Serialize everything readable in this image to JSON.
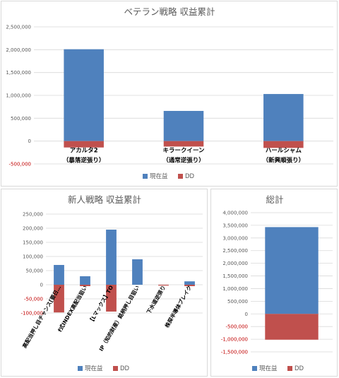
{
  "colors": {
    "profit": "#4f81bd",
    "dd": "#c0504d",
    "grid": "#d9d9d9",
    "axis_text": "#595959",
    "negative_tick": "#c00000"
  },
  "chart_data": [
    {
      "type": "bar",
      "title": "ベテラン戦略 収益累計",
      "categories": [
        [
          "アカルタ2",
          "（暴落逆張り）"
        ],
        [
          "キラークイーン",
          "（通常逆張り）"
        ],
        [
          "ハールシャム",
          "（新興順張り）"
        ]
      ],
      "series": [
        {
          "name": "現在益",
          "values": [
            2010000,
            660000,
            1030000
          ]
        },
        {
          "name": "DD",
          "values": [
            -140000,
            -120000,
            -150000
          ]
        }
      ],
      "ylim": [
        -500000,
        2500000
      ],
      "yticks": [
        "-500,000",
        "0",
        "500,000",
        "1,000,000",
        "1,500,000",
        "2,000,000",
        "2,500,000"
      ],
      "ytick_values": [
        -500000,
        0,
        500000,
        1000000,
        1500000,
        2000000,
        2500000
      ],
      "grid": true,
      "legend": "bottom"
    },
    {
      "type": "bar",
      "title": "新人戦略 収益累計",
      "categories": [
        "高配当押し目チャンス[要日…",
        "f式INDEX高配当狙い",
        "【Lマックス】TO",
        "IP（知的財産）銘柄押し目狙い",
        "下水道逆張り",
        "株探半導体ブレイク"
      ],
      "series": [
        {
          "name": "現在益",
          "values": [
            70000,
            30000,
            195000,
            90000,
            0,
            12000
          ]
        },
        {
          "name": "DD",
          "values": [
            -98000,
            -5000,
            -95000,
            0,
            -3000,
            -5000
          ]
        }
      ],
      "ylim": [
        -100000,
        250000
      ],
      "yticks": [
        "-100,000",
        "-50,000",
        "0",
        "50,000",
        "100,000",
        "150,000",
        "200,000",
        "250,000"
      ],
      "ytick_values": [
        -100000,
        -50000,
        0,
        50000,
        100000,
        150000,
        200000,
        250000
      ],
      "grid": true,
      "legend": "bottom"
    },
    {
      "type": "bar",
      "title": "総計",
      "categories": [
        ""
      ],
      "series": [
        {
          "name": "現在益",
          "values": [
            3430000
          ]
        },
        {
          "name": "DD",
          "values": [
            -1020000
          ]
        }
      ],
      "ylim": [
        -1500000,
        4000000
      ],
      "yticks": [
        "-1,500,000",
        "-1,000,000",
        "-500,000",
        "0",
        "500,000",
        "1,000,000",
        "1,500,000",
        "2,000,000",
        "2,500,000",
        "3,000,000",
        "3,500,000",
        "4,000,000"
      ],
      "ytick_values": [
        -1500000,
        -1000000,
        -500000,
        0,
        500000,
        1000000,
        1500000,
        2000000,
        2500000,
        3000000,
        3500000,
        4000000
      ],
      "grid": true,
      "legend": "bottom"
    }
  ]
}
